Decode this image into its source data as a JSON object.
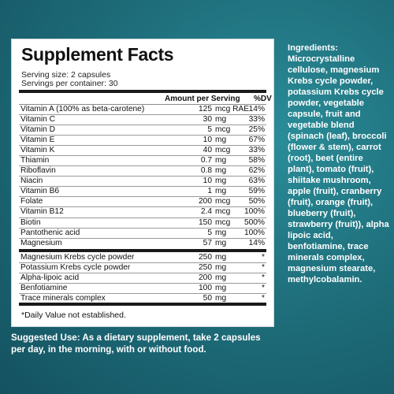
{
  "panel": {
    "title": "Supplement Facts",
    "serving_size": "Serving size: 2 capsules",
    "servings_per_container": "Servings per container: 30",
    "header_amount": "Amount per Serving",
    "header_dv": "%DV",
    "vitamins": [
      {
        "name": "Vitamin A (100% as beta-carotene)",
        "amount": "125",
        "unit": "mcg RAE",
        "dv": "14%"
      },
      {
        "name": "Vitamin C",
        "amount": "30",
        "unit": "mg",
        "dv": "33%"
      },
      {
        "name": "Vitamin D",
        "amount": "5",
        "unit": "mcg",
        "dv": "25%"
      },
      {
        "name": "Vitamin E",
        "amount": "10",
        "unit": "mg",
        "dv": "67%"
      },
      {
        "name": "Vitamin K",
        "amount": "40",
        "unit": "mcg",
        "dv": "33%"
      },
      {
        "name": "Thiamin",
        "amount": "0.7",
        "unit": "mg",
        "dv": "58%"
      },
      {
        "name": "Riboflavin",
        "amount": "0.8",
        "unit": "mg",
        "dv": "62%"
      },
      {
        "name": "Niacin",
        "amount": "10",
        "unit": "mg",
        "dv": "63%"
      },
      {
        "name": "Vitamin B6",
        "amount": "1",
        "unit": "mg",
        "dv": "59%"
      },
      {
        "name": "Folate",
        "amount": "200",
        "unit": "mcg",
        "dv": "50%"
      },
      {
        "name": "Vitamin B12",
        "amount": "2.4",
        "unit": "mcg",
        "dv": "100%"
      },
      {
        "name": "Biotin",
        "amount": "150",
        "unit": "mcg",
        "dv": "500%"
      },
      {
        "name": "Pantothenic acid",
        "amount": "5",
        "unit": "mg",
        "dv": "100%"
      },
      {
        "name": "Magnesium",
        "amount": "57",
        "unit": "mg",
        "dv": "14%"
      }
    ],
    "others": [
      {
        "name": "Magnesium Krebs cycle powder",
        "amount": "250",
        "unit": "mg",
        "dv": "*"
      },
      {
        "name": "Potassium Krebs cycle powder",
        "amount": "250",
        "unit": "mg",
        "dv": "*"
      },
      {
        "name": "Alpha-lipoic acid",
        "amount": "200",
        "unit": "mg",
        "dv": "*"
      },
      {
        "name": "Benfotiamine",
        "amount": "100",
        "unit": "mg",
        "dv": "*"
      },
      {
        "name": "Trace minerals complex",
        "amount": "50",
        "unit": "mg",
        "dv": "*"
      }
    ],
    "footnote": "*Daily Value not established."
  },
  "ingredients": {
    "title": "Ingredients:",
    "text": "Microcrystalline cellulose, magnesium Krebs cycle powder, potassium Krebs cycle powder, vegetable capsule, fruit and vegetable blend (spinach (leaf), broccoli (flower & stem), carrot (root), beet (entire plant), tomato (fruit), shiitake mushroom, apple (fruit), cranberry (fruit), orange (fruit), blueberry (fruit), strawberry (fruit)), alpha lipoic acid, benfotiamine, trace minerals complex, magnesium stearate, methylcobalamin."
  },
  "usage": {
    "label": "Suggested Use:",
    "text": "As a dietary supplement, take 2 capsules per day, in the morning, with or without food."
  }
}
